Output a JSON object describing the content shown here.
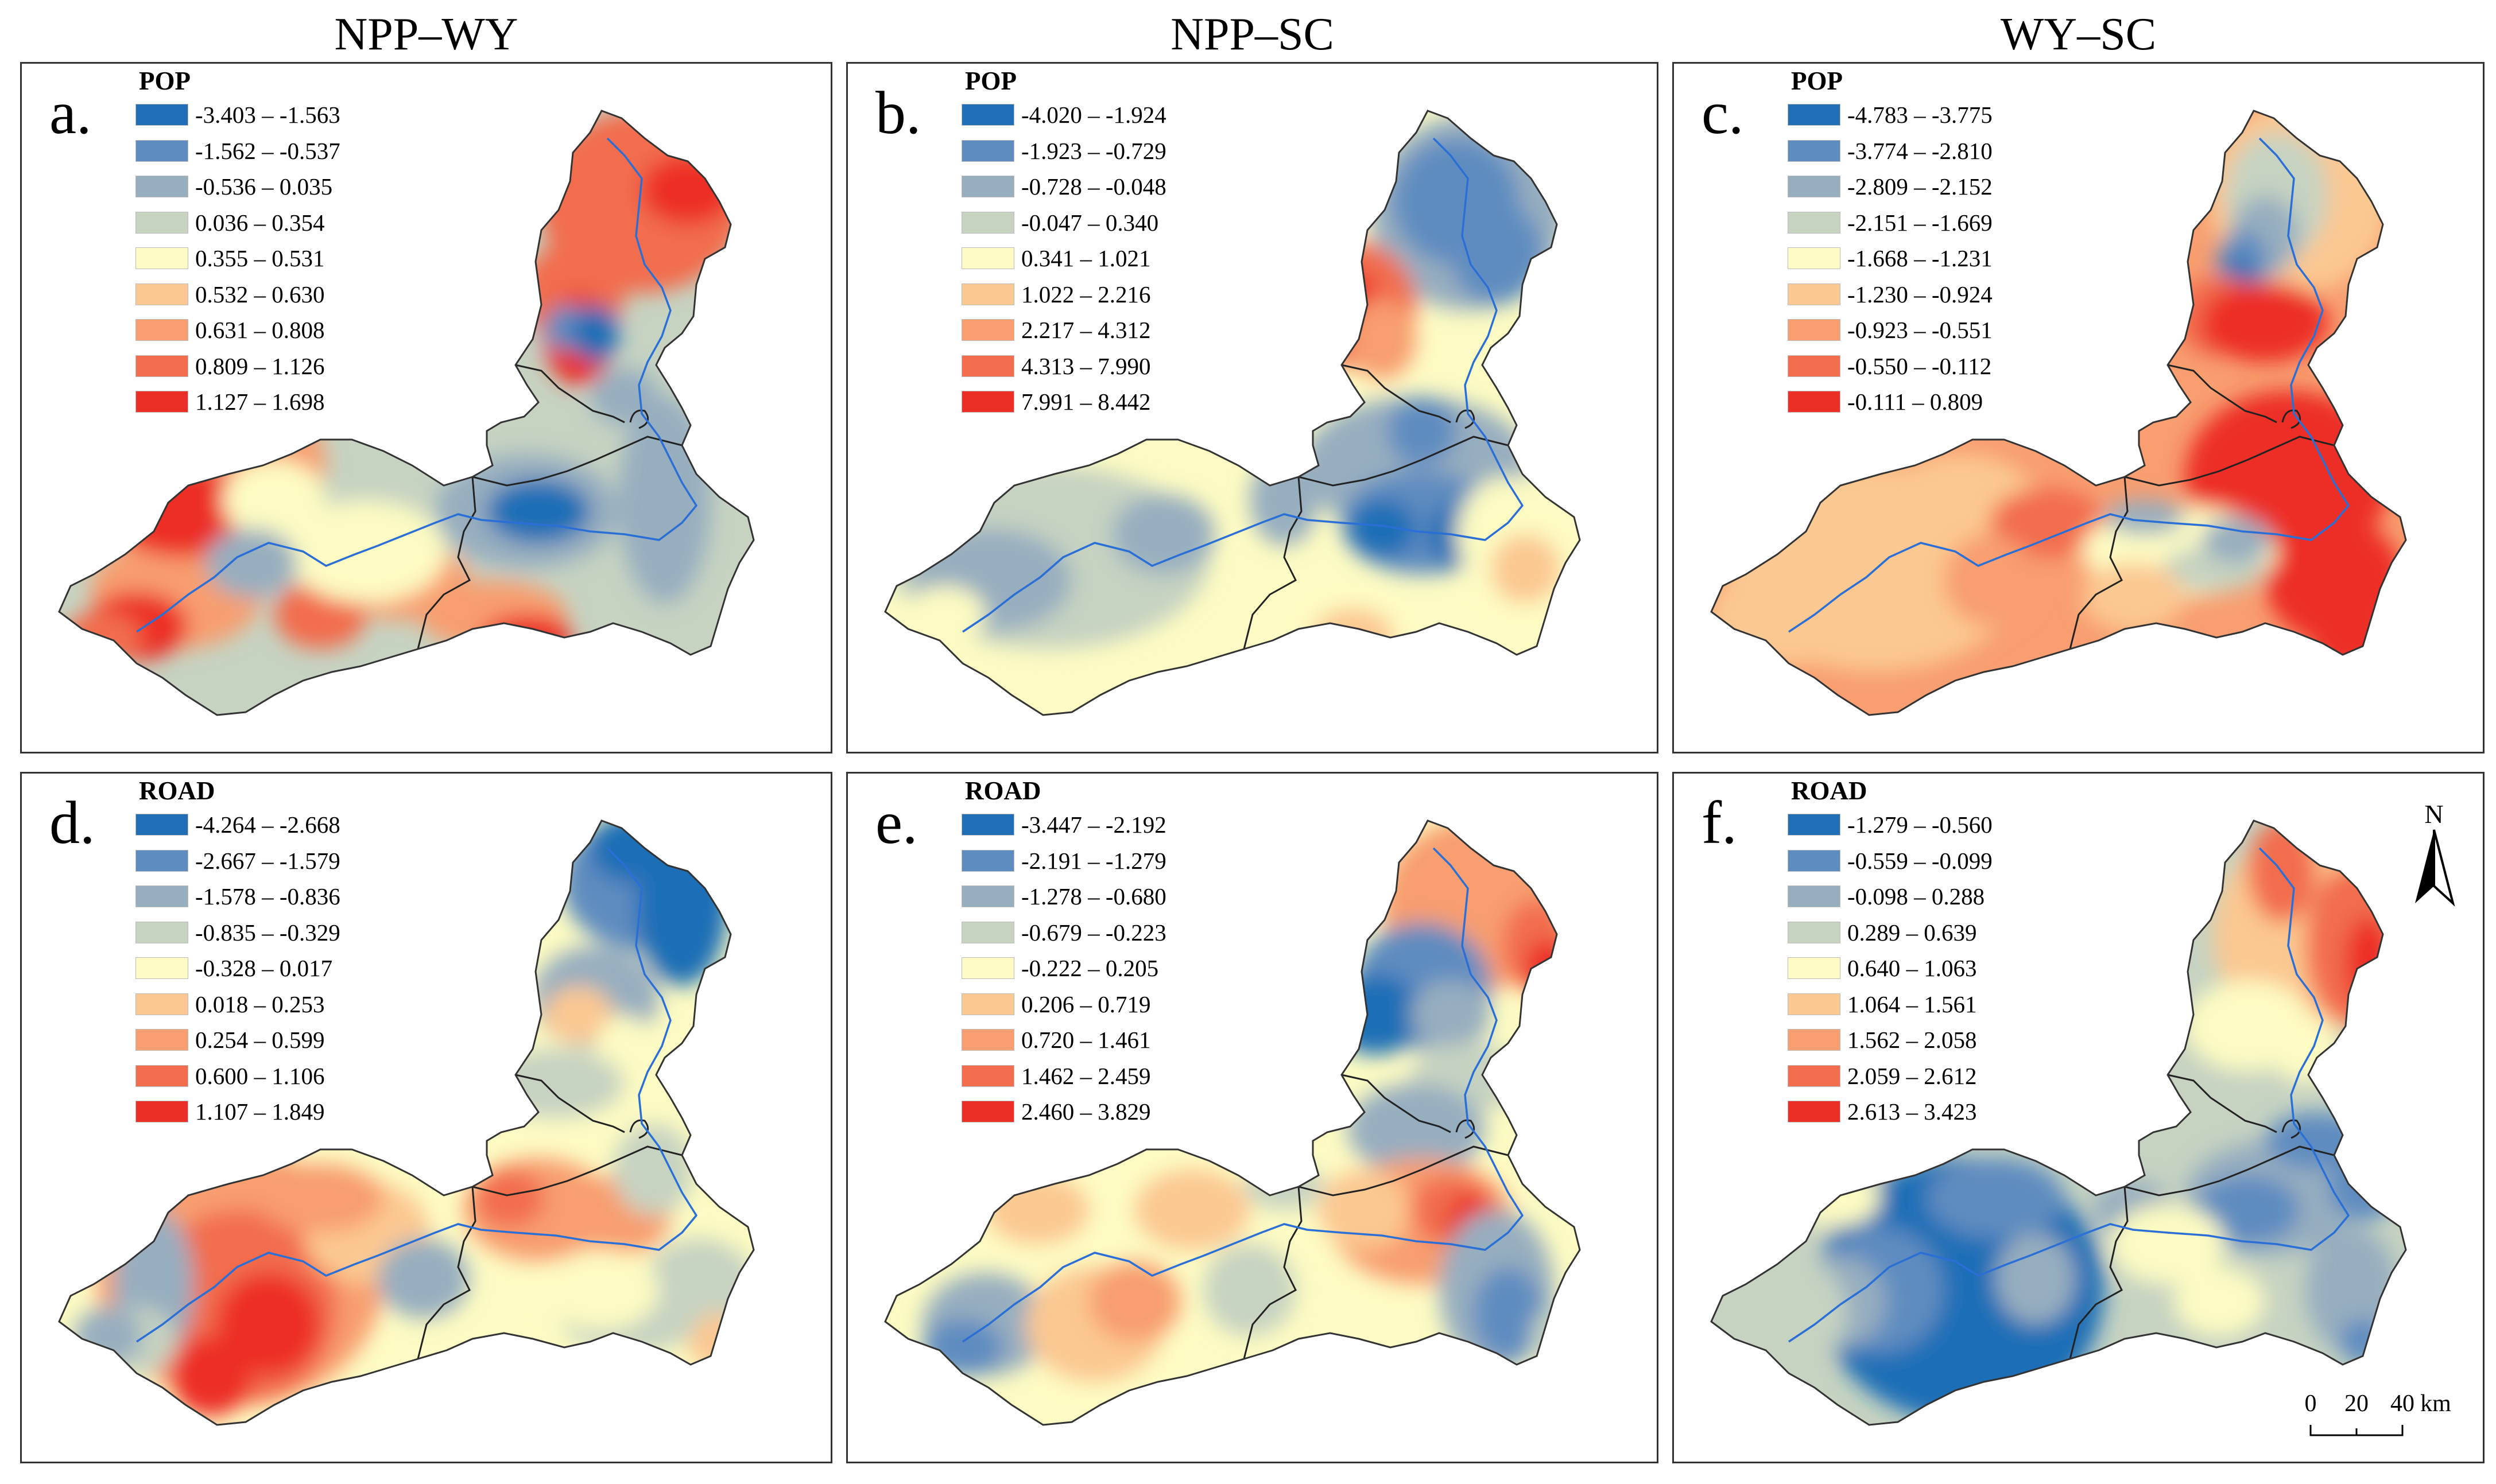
{
  "column_titles": [
    "NPP–WY",
    "NPP–SC",
    "WY–SC"
  ],
  "colors": [
    "#1f6eb6",
    "#5e8cc0",
    "#97aebf",
    "#c6d3c1",
    "#fdfbc3",
    "#fbc891",
    "#f89e70",
    "#f26d4e",
    "#ec2f26"
  ],
  "panels": [
    {
      "label": "a.",
      "legend_title": "POP",
      "legend": [
        "-3.403 – -1.563",
        "-1.562 – -0.537",
        "-0.536 – 0.035",
        "0.036 – 0.354",
        "0.355 – 0.531",
        "0.532 – 0.630",
        "0.631 – 0.808",
        "0.809 – 1.126",
        "1.127 – 1.698"
      ]
    },
    {
      "label": "b.",
      "legend_title": "POP",
      "legend": [
        "-4.020 – -1.924",
        "-1.923 – -0.729",
        "-0.728 – -0.048",
        "-0.047 – 0.340",
        "0.341 – 1.021",
        "1.022 – 2.216",
        "2.217 – 4.312",
        "4.313 – 7.990",
        "7.991 – 8.442"
      ]
    },
    {
      "label": "c.",
      "legend_title": "POP",
      "legend": [
        "-4.783 – -3.775",
        "-3.774 – -2.810",
        "-2.809 – -2.152",
        "-2.151 – -1.669",
        "-1.668 – -1.231",
        "-1.230 – -0.924",
        "-0.923 – -0.551",
        "-0.550 – -0.112",
        "-0.111 – 0.809"
      ]
    },
    {
      "label": "d.",
      "legend_title": "ROAD",
      "legend": [
        "-4.264 – -2.668",
        "-2.667 – -1.579",
        "-1.578 – -0.836",
        "-0.835 – -0.329",
        "-0.328 – 0.017",
        "0.018 – 0.253",
        "0.254 – 0.599",
        "0.600 – 1.106",
        "1.107 – 1.849"
      ]
    },
    {
      "label": "e.",
      "legend_title": "ROAD",
      "legend": [
        "-3.447 – -2.192",
        "-2.191 – -1.279",
        "-1.278 – -0.680",
        "-0.679 – -0.223",
        "-0.222 – 0.205",
        "0.206 – 0.719",
        "0.720 – 1.461",
        "1.462 – 2.459",
        "2.460 – 3.829"
      ]
    },
    {
      "label": "f.",
      "legend_title": "ROAD",
      "legend": [
        "-1.279 – -0.560",
        "-0.559 – -0.099",
        "-0.098 – 0.288",
        "0.289 – 0.639",
        "0.640 – 1.063",
        "1.064 – 1.561",
        "1.562 – 2.058",
        "2.059 – 2.612",
        "2.613 – 3.423"
      ]
    }
  ],
  "north_arrow": {
    "label": "N"
  },
  "scale_bar": {
    "ticks": [
      "0",
      "20",
      "40"
    ],
    "unit": "km"
  }
}
